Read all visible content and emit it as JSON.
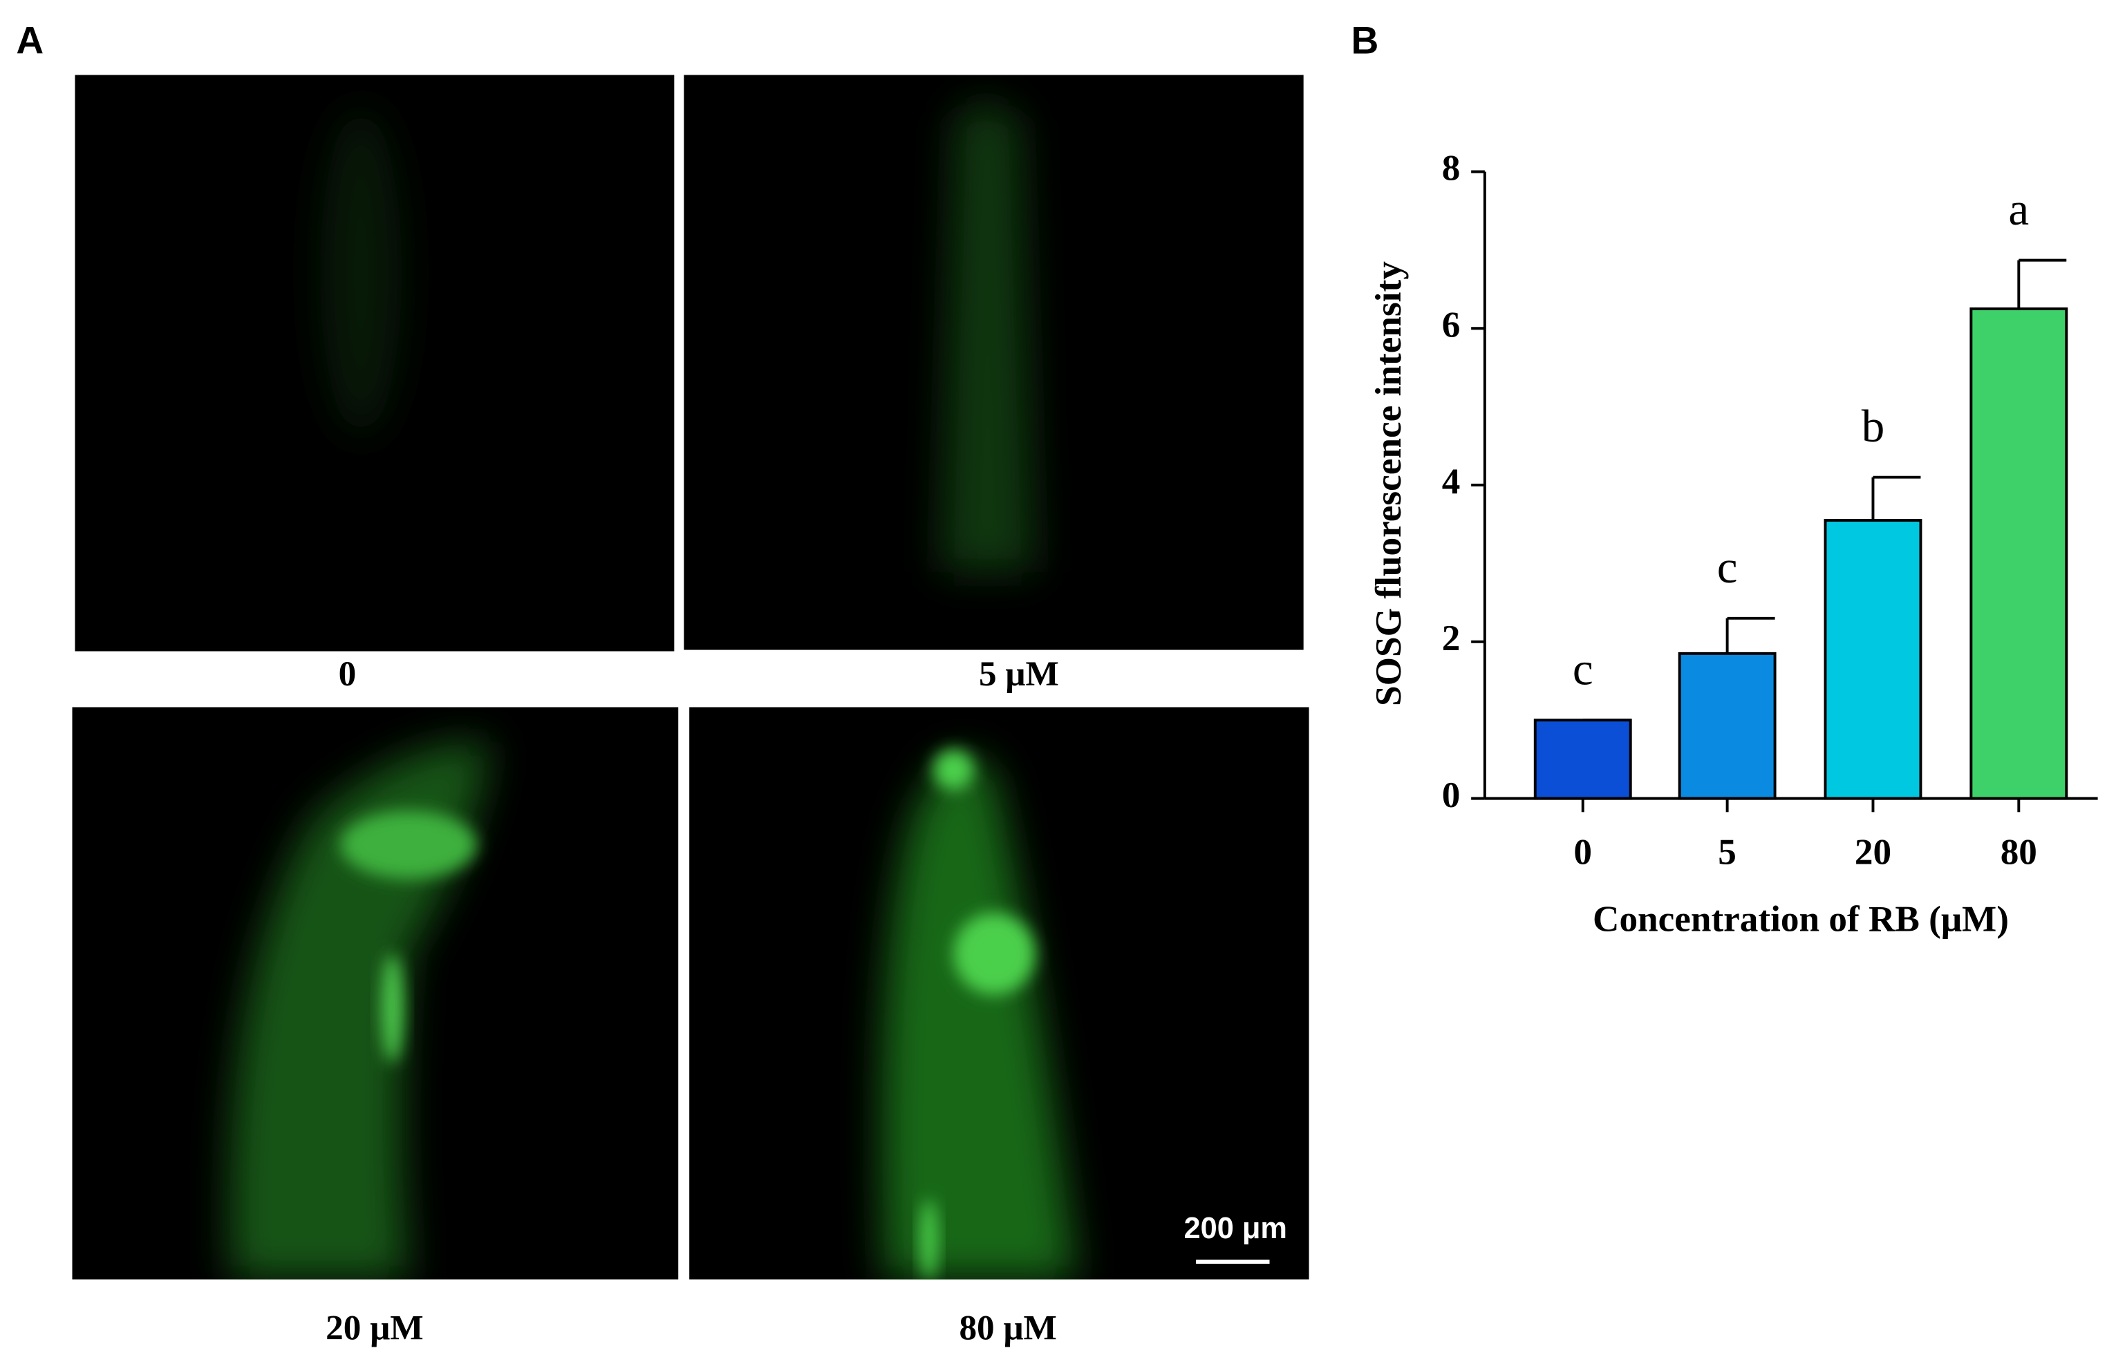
{
  "panel_labels": [
    "A",
    "B"
  ],
  "images": {
    "captions": [
      "0",
      "5 μM",
      "20 μM",
      "80 μM"
    ],
    "scale_bar": "200 μm"
  },
  "chart_data": {
    "type": "bar",
    "x_label": "Concentration of RB (μM)",
    "y_label": "SOSG fluorescence intensity",
    "categories": [
      "0",
      "5",
      "20",
      "80"
    ],
    "values": [
      1.0,
      1.85,
      3.55,
      6.25
    ],
    "errors": [
      0,
      0.45,
      0.55,
      0.62
    ],
    "significance": [
      "c",
      "c",
      "b",
      "a"
    ],
    "colors": [
      "#0a4fd6",
      "#0a8ae0",
      "#00c8e0",
      "#3ed16a"
    ],
    "ylim": [
      0,
      8
    ],
    "yticks": [
      0,
      2,
      4,
      6,
      8
    ]
  }
}
